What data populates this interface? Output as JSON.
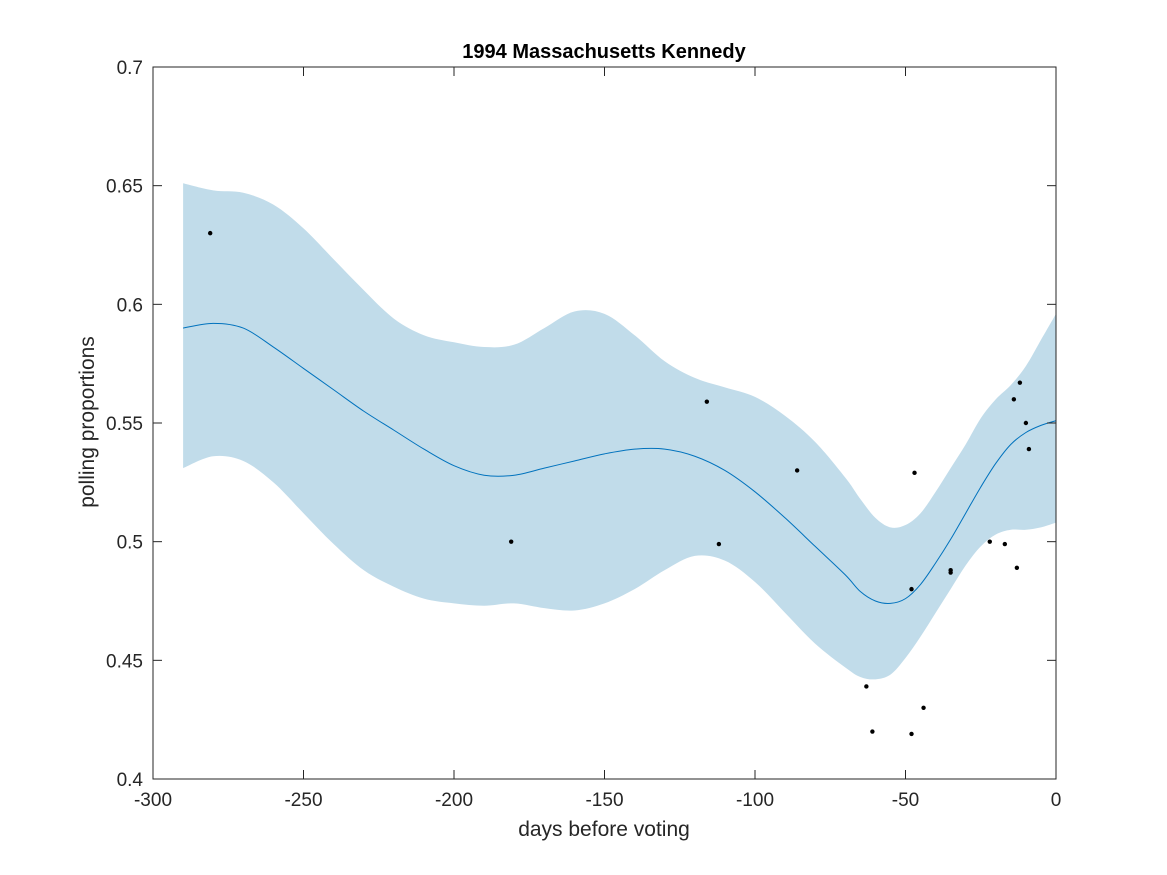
{
  "chart_data": {
    "type": "line",
    "title": "1994 Massachusetts Kennedy",
    "xlabel": "days before voting",
    "ylabel": "polling proportions",
    "xlim": [
      -300,
      0
    ],
    "ylim": [
      0.4,
      0.7
    ],
    "xticks": [
      -300,
      -250,
      -200,
      -150,
      -100,
      -50,
      0
    ],
    "xtick_labels": [
      "-300",
      "-250",
      "-200",
      "-150",
      "-100",
      "-50",
      "0"
    ],
    "yticks": [
      0.4,
      0.45,
      0.5,
      0.55,
      0.6,
      0.65,
      0.7
    ],
    "ytick_labels": [
      "0.4",
      "0.45",
      "0.5",
      "0.55",
      "0.6",
      "0.65",
      "0.7"
    ],
    "grid": false,
    "colors": {
      "band": "#c1dcea",
      "mean_line": "#0072bd",
      "points": "#000000",
      "axes": "#262626"
    },
    "band": {
      "x": [
        -290,
        -280,
        -270,
        -260,
        -250,
        -240,
        -230,
        -220,
        -210,
        -200,
        -190,
        -180,
        -170,
        -160,
        -150,
        -140,
        -130,
        -120,
        -110,
        -100,
        -90,
        -80,
        -70,
        -65,
        -60,
        -55,
        -50,
        -45,
        -40,
        -35,
        -30,
        -25,
        -20,
        -15,
        -10,
        -5,
        0
      ],
      "upper": [
        0.651,
        0.648,
        0.647,
        0.642,
        0.632,
        0.619,
        0.606,
        0.594,
        0.587,
        0.584,
        0.582,
        0.583,
        0.59,
        0.597,
        0.596,
        0.587,
        0.576,
        0.569,
        0.565,
        0.561,
        0.553,
        0.542,
        0.527,
        0.518,
        0.51,
        0.506,
        0.507,
        0.512,
        0.521,
        0.531,
        0.541,
        0.552,
        0.56,
        0.566,
        0.574,
        0.585,
        0.596
      ],
      "lower": [
        0.531,
        0.536,
        0.534,
        0.525,
        0.512,
        0.499,
        0.488,
        0.481,
        0.476,
        0.474,
        0.473,
        0.474,
        0.472,
        0.471,
        0.474,
        0.48,
        0.488,
        0.494,
        0.492,
        0.483,
        0.47,
        0.457,
        0.447,
        0.443,
        0.442,
        0.444,
        0.451,
        0.46,
        0.47,
        0.48,
        0.49,
        0.498,
        0.503,
        0.505,
        0.505,
        0.506,
        0.508
      ]
    },
    "series": [
      {
        "x": [
          -290,
          -280,
          -270,
          -260,
          -250,
          -240,
          -230,
          -220,
          -210,
          -200,
          -190,
          -180,
          -170,
          -160,
          -150,
          -140,
          -130,
          -120,
          -110,
          -100,
          -90,
          -80,
          -70,
          -65,
          -60,
          -55,
          -50,
          -45,
          -40,
          -35,
          -30,
          -25,
          -20,
          -15,
          -10,
          -5,
          0
        ],
        "values": [
          0.59,
          0.592,
          0.59,
          0.582,
          0.573,
          0.564,
          0.555,
          0.547,
          0.539,
          0.532,
          0.528,
          0.528,
          0.531,
          0.534,
          0.537,
          0.539,
          0.539,
          0.536,
          0.53,
          0.521,
          0.51,
          0.498,
          0.486,
          0.479,
          0.475,
          0.474,
          0.476,
          0.482,
          0.491,
          0.501,
          0.512,
          0.523,
          0.533,
          0.541,
          0.546,
          0.549,
          0.551
        ]
      }
    ],
    "points": [
      {
        "x": -281,
        "y": 0.63
      },
      {
        "x": -181,
        "y": 0.5
      },
      {
        "x": -116,
        "y": 0.559
      },
      {
        "x": -112,
        "y": 0.499
      },
      {
        "x": -86,
        "y": 0.53
      },
      {
        "x": -63,
        "y": 0.439
      },
      {
        "x": -61,
        "y": 0.42
      },
      {
        "x": -48,
        "y": 0.48
      },
      {
        "x": -48,
        "y": 0.419
      },
      {
        "x": -47,
        "y": 0.529
      },
      {
        "x": -44,
        "y": 0.43
      },
      {
        "x": -35,
        "y": 0.488
      },
      {
        "x": -35,
        "y": 0.487
      },
      {
        "x": -22,
        "y": 0.5
      },
      {
        "x": -17,
        "y": 0.499
      },
      {
        "x": -14,
        "y": 0.56
      },
      {
        "x": -13,
        "y": 0.489
      },
      {
        "x": -12,
        "y": 0.567
      },
      {
        "x": -10,
        "y": 0.55
      },
      {
        "x": -9,
        "y": 0.539
      }
    ]
  }
}
